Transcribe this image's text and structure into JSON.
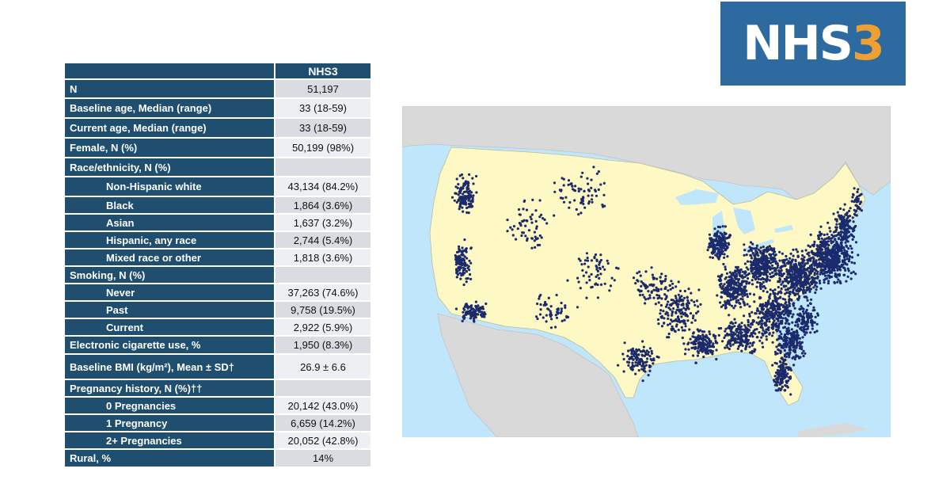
{
  "logo": {
    "text_main": "NHS",
    "text_accent": "3"
  },
  "table": {
    "column_header": "NHS3",
    "rows": [
      {
        "label": "N",
        "value": "51,197",
        "indent": false
      },
      {
        "label": "Baseline age, Median (range)",
        "value": "33 (18-59)",
        "indent": false
      },
      {
        "label": "Current age, Median (range)",
        "value": "33 (18-59)",
        "indent": false
      },
      {
        "label": "Female, N (%)",
        "value": "50,199 (98%)",
        "indent": false
      },
      {
        "label": "Race/ethnicity, N (%)",
        "value": "",
        "indent": false
      },
      {
        "label": "Non-Hispanic white",
        "value": "43,134 (84.2%)",
        "indent": true
      },
      {
        "label": "Black",
        "value": "1,864 (3.6%)",
        "indent": true
      },
      {
        "label": "Asian",
        "value": "1,637 (3.2%)",
        "indent": true
      },
      {
        "label": "Hispanic, any race",
        "value": "2,744 (5.4%)",
        "indent": true
      },
      {
        "label": "Mixed race or other",
        "value": "1,818 (3.6%)",
        "indent": true
      },
      {
        "label": "Smoking, N (%)",
        "value": "",
        "indent": false
      },
      {
        "label": "Never",
        "value": "37,263 (74.6%)",
        "indent": true
      },
      {
        "label": "Past",
        "value": "9,758 (19.5%)",
        "indent": true
      },
      {
        "label": "Current",
        "value": "2,922 (5.9%)",
        "indent": true
      },
      {
        "label": "Electronic cigarette use, %",
        "value": "1,950 (8.3%)",
        "indent": false
      },
      {
        "label": "Baseline BMI (kg/m²), Mean ± SD†",
        "value": "26.9 ± 6.6",
        "indent": false
      },
      {
        "label": "Pregnancy history, N (%)††",
        "value": "",
        "indent": false
      },
      {
        "label": "0 Pregnancies",
        "value": "20,142 (43.0%)",
        "indent": true
      },
      {
        "label": "1 Pregnancy",
        "value": "6,659 (14.2%)",
        "indent": true
      },
      {
        "label": "2+ Pregnancies",
        "value": "20,052 (42.8%)",
        "indent": true
      },
      {
        "label": "Rural, %",
        "value": "14%",
        "indent": false
      }
    ]
  },
  "colors": {
    "header_bg": "#1f4e6e",
    "logo_bg": "#2d6a9f",
    "logo_accent": "#f0a032",
    "value_cell_a": "#d9dce1",
    "value_cell_b": "#edeff2",
    "map_water": "#bfe6fb",
    "map_land_us": "#fdf8c4",
    "map_land_other": "#d9d9d9",
    "map_dots": "#1a2a6c"
  }
}
